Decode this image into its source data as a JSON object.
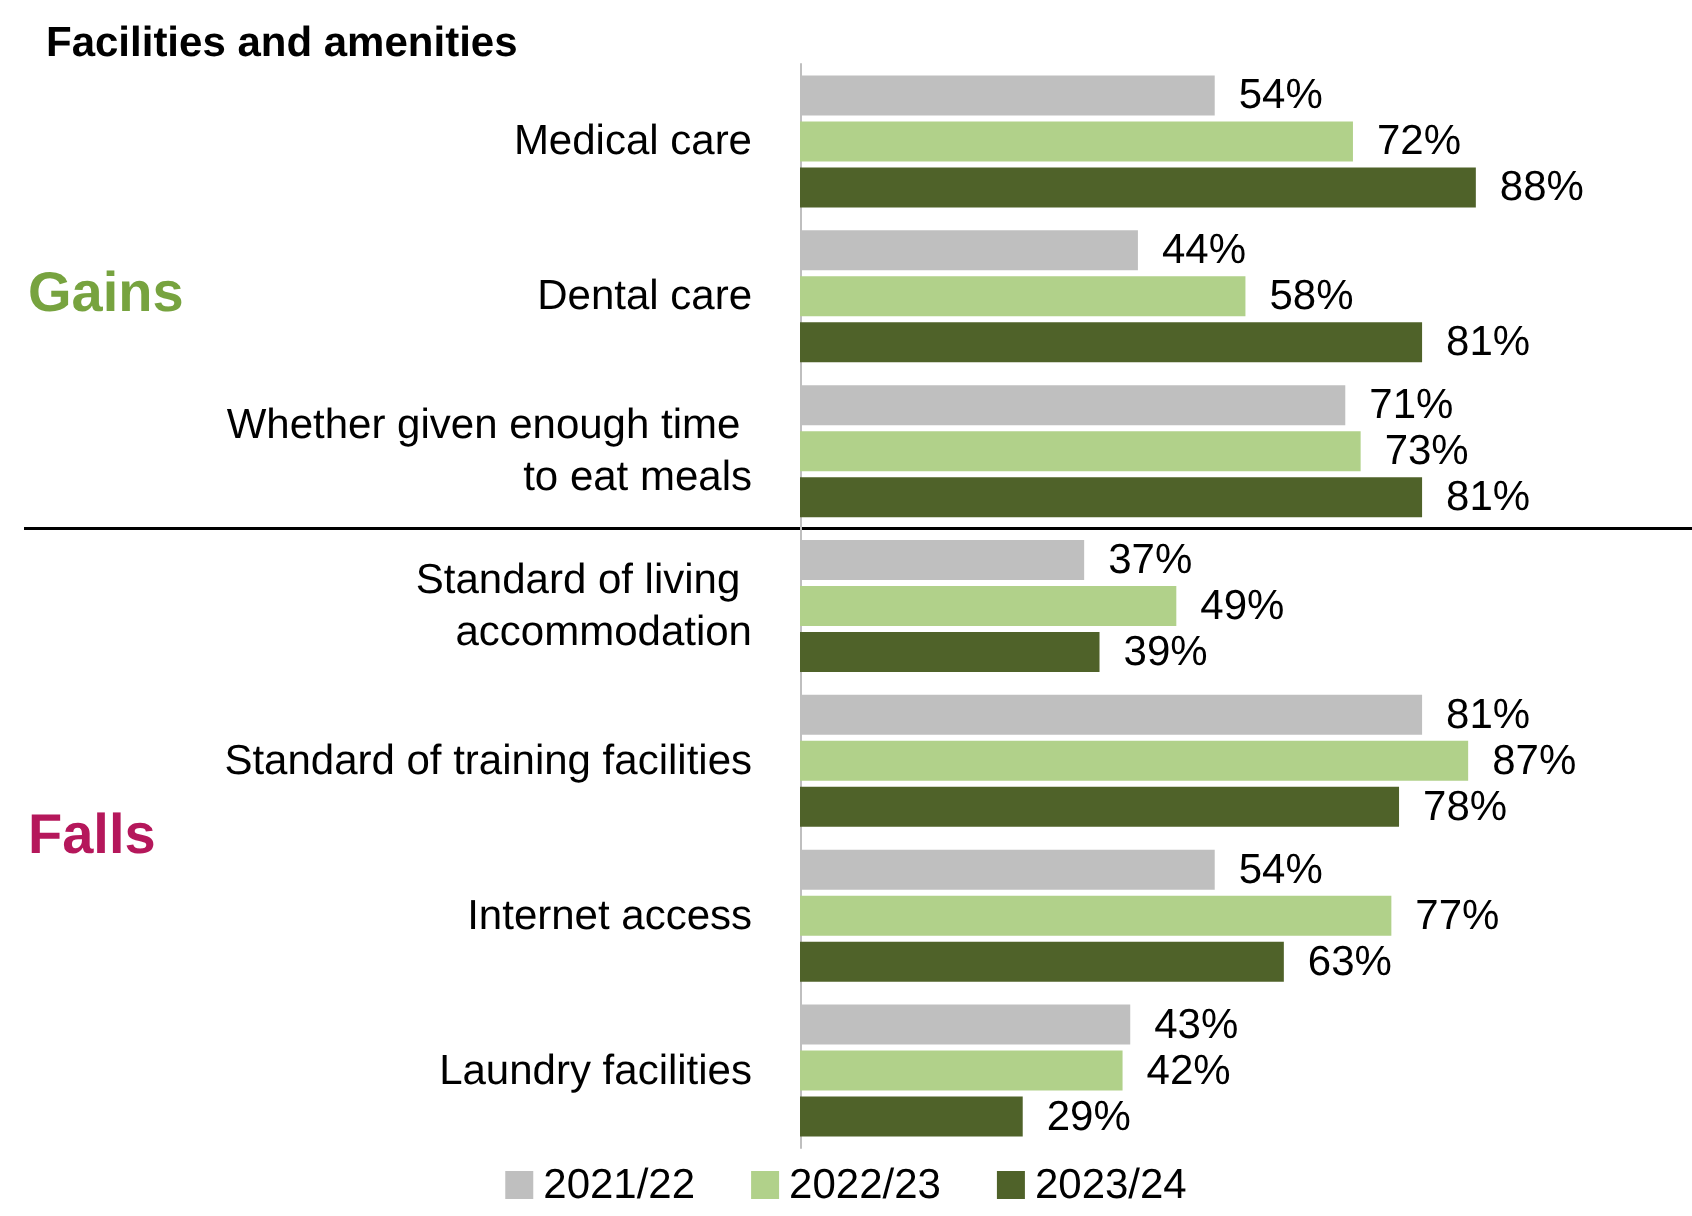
{
  "chart_data": {
    "type": "bar",
    "orientation": "horizontal",
    "title": "Facilities and amenities",
    "categories": [
      "Medical care",
      "Dental care",
      "Whether given enough time to eat meals",
      "Standard of living accommodation",
      "Standard of training facilities",
      "Internet access",
      "Laundry facilities"
    ],
    "series": [
      {
        "name": "2021/22",
        "color": "#bfbfbf",
        "values": [
          54,
          44,
          71,
          37,
          81,
          54,
          43
        ],
        "value_labels": [
          "54%",
          "44%",
          "71%",
          "37%",
          "81%",
          "54%",
          "43%"
        ]
      },
      {
        "name": "2022/23",
        "color": "#b1d18a",
        "values": [
          72,
          58,
          73,
          49,
          87,
          77,
          42
        ],
        "value_labels": [
          "72%",
          "58%",
          "73%",
          "49%",
          "87%",
          "77%",
          "42%"
        ]
      },
      {
        "name": "2023/24",
        "color": "#4f6229",
        "values": [
          88,
          81,
          81,
          39,
          78,
          63,
          29
        ],
        "value_labels": [
          "88%",
          "81%",
          "81%",
          "39%",
          "78%",
          "63%",
          "29%"
        ]
      }
    ],
    "annotations": [
      "Gains",
      "Falls"
    ],
    "legend": "bottom"
  }
}
